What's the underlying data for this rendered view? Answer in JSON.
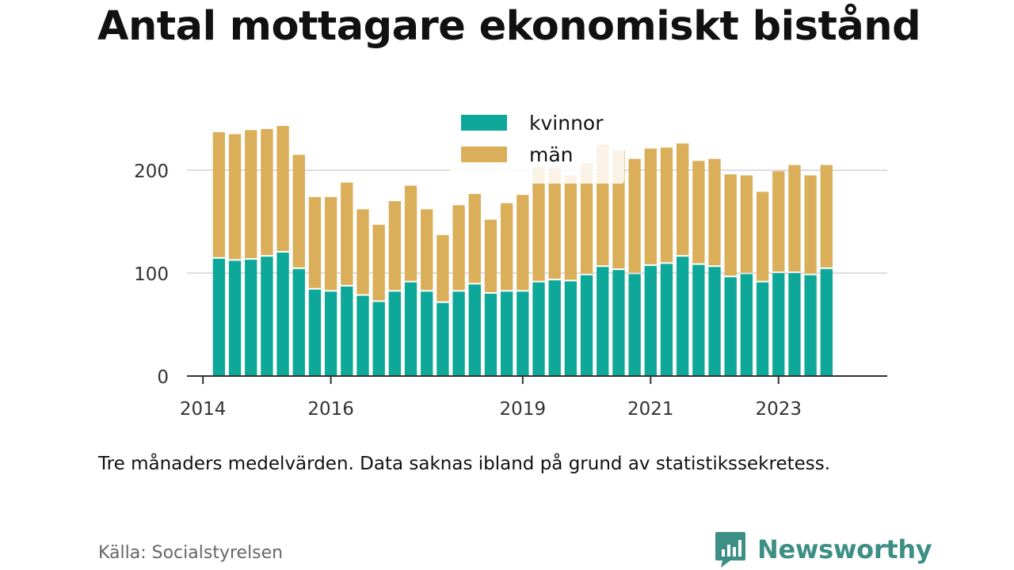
{
  "chart_data": {
    "type": "bar",
    "stacked": true,
    "title": "Antal mottagare ekonomiskt bistånd",
    "note": "Tre månaders medelvärden. Data saknas ibland på grund av statistikssekretess.",
    "source": "Källa: Socialstyrelsen",
    "xlabel": "",
    "ylabel": "",
    "ylim": [
      0,
      250
    ],
    "yticks": [
      0,
      100,
      200
    ],
    "xlim": [
      2013.75,
      2024.7
    ],
    "xticks": [
      2014,
      2016,
      2019,
      2021,
      2023
    ],
    "grid": true,
    "legend_position": "top-center",
    "x": [
      2014.25,
      2014.5,
      2014.75,
      2015,
      2015.25,
      2015.5,
      2015.75,
      2016,
      2016.25,
      2016.5,
      2016.75,
      2017,
      2017.25,
      2017.5,
      2017.75,
      2018,
      2018.25,
      2018.5,
      2018.75,
      2019,
      2019.25,
      2019.5,
      2019.75,
      2020,
      2020.25,
      2020.5,
      2020.75,
      2021,
      2021.25,
      2021.5,
      2021.75,
      2022,
      2022.25,
      2022.5,
      2022.75,
      2023,
      2023.25,
      2023.5,
      2023.75
    ],
    "series": [
      {
        "name": "kvinnor",
        "color": "#0ea89a",
        "values": [
          114,
          112,
          113,
          116,
          120,
          104,
          84,
          82,
          87,
          78,
          72,
          82,
          91,
          82,
          71,
          82,
          89,
          80,
          82,
          82,
          91,
          93,
          92,
          98,
          106,
          103,
          99,
          107,
          109,
          116,
          108,
          106,
          96,
          99,
          91,
          100,
          100,
          98,
          104
        ]
      },
      {
        "name": "män",
        "color": "#dbaf5a",
        "values": [
          123,
          123,
          126,
          124,
          123,
          111,
          90,
          92,
          101,
          84,
          75,
          88,
          94,
          80,
          66,
          84,
          88,
          72,
          86,
          94,
          112,
          109,
          103,
          109,
          119,
          116,
          112,
          114,
          113,
          110,
          101,
          105,
          100,
          96,
          88,
          99,
          105,
          97,
          101
        ]
      }
    ]
  },
  "brand": {
    "name": "Newsworthy",
    "color": "#3d8f85"
  }
}
